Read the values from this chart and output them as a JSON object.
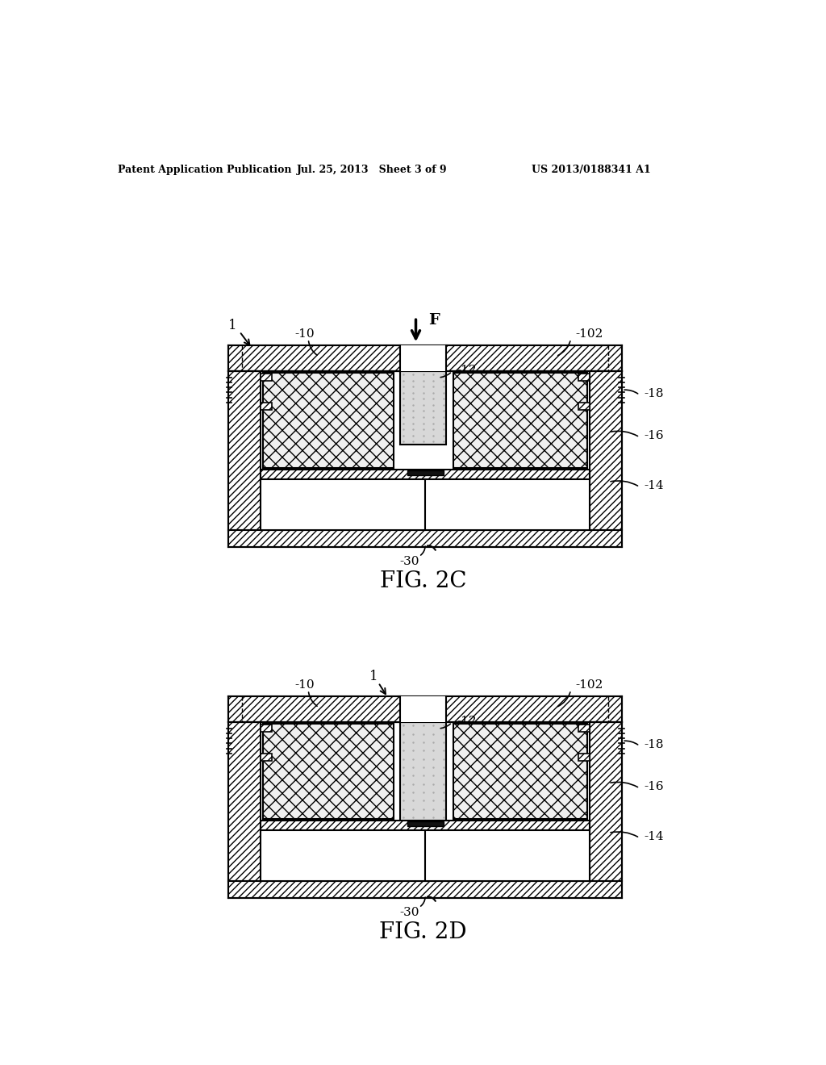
{
  "header_left": "Patent Application Publication",
  "header_mid": "Jul. 25, 2013   Sheet 3 of 9",
  "header_right": "US 2013/0188341 A1",
  "fig2c_label": "FIG. 2C",
  "fig2d_label": "FIG. 2D",
  "bg_color": "#ffffff",
  "line_color": "#000000"
}
